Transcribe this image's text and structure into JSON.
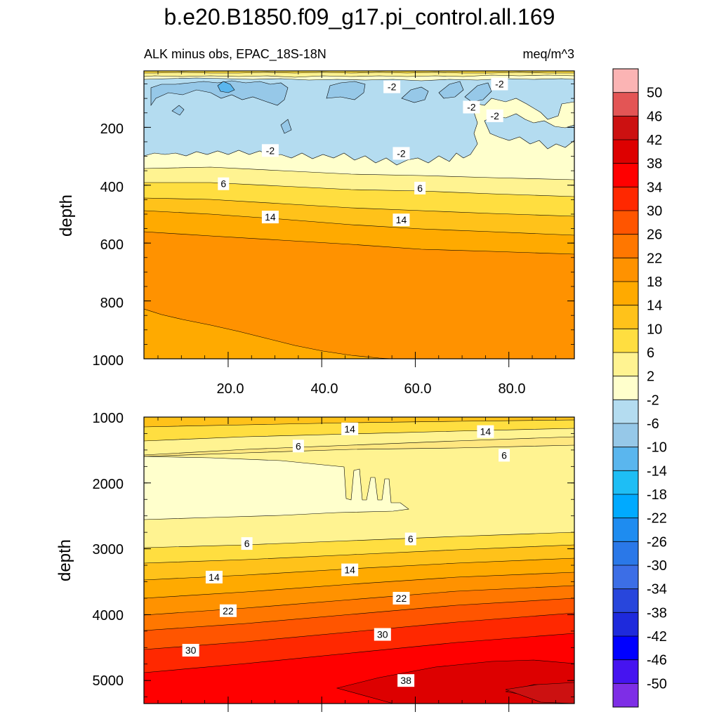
{
  "chart_data": [
    {
      "type": "contour",
      "panel": "upper",
      "title": "b.e20.B1850.f09_g17.pi_control.all.169",
      "left_title": "ALK minus obs, EPAC_18S-18N",
      "right_title": "meq/m^3",
      "ylabel": "depth",
      "xlabel": "",
      "xlim": [
        2,
        94
      ],
      "ylim": [
        1000,
        5
      ],
      "xticks": [
        20,
        40,
        60,
        80
      ],
      "xtick_labels": [
        "20.0",
        "40.0",
        "60.0",
        "80.0"
      ],
      "yticks": [
        200,
        400,
        600,
        800,
        1000
      ],
      "ytick_labels": [
        "200",
        "400",
        "600",
        "800",
        "1000"
      ],
      "contour_labels": [
        {
          "text": "-2",
          "x": 55,
          "y": 60
        },
        {
          "text": "-2",
          "x": 78,
          "y": 50
        },
        {
          "text": "-2",
          "x": 72,
          "y": 130
        },
        {
          "text": "-2",
          "x": 77,
          "y": 160
        },
        {
          "text": "-2",
          "x": 29,
          "y": 280
        },
        {
          "text": "-2",
          "x": 57,
          "y": 290
        },
        {
          "text": "6",
          "x": 19,
          "y": 395
        },
        {
          "text": "6",
          "x": 61,
          "y": 410
        },
        {
          "text": "14",
          "x": 29,
          "y": 510
        },
        {
          "text": "14",
          "x": 57,
          "y": 520
        }
      ]
    },
    {
      "type": "contour",
      "panel": "lower",
      "ylabel": "depth",
      "xlim": [
        2,
        94
      ],
      "ylim": [
        5350,
        1000
      ],
      "yticks": [
        1000,
        2000,
        3000,
        4000,
        5000
      ],
      "ytick_labels": [
        "1000",
        "2000",
        "3000",
        "4000",
        "5000"
      ],
      "contour_labels": [
        {
          "text": "14",
          "x": 46,
          "y": 1180
        },
        {
          "text": "14",
          "x": 75,
          "y": 1220
        },
        {
          "text": "6",
          "x": 35,
          "y": 1440
        },
        {
          "text": "6",
          "x": 79,
          "y": 1580
        },
        {
          "text": "6",
          "x": 24,
          "y": 2920
        },
        {
          "text": "6",
          "x": 59,
          "y": 2850
        },
        {
          "text": "14",
          "x": 17,
          "y": 3430
        },
        {
          "text": "14",
          "x": 46,
          "y": 3320
        },
        {
          "text": "22",
          "x": 20,
          "y": 3940
        },
        {
          "text": "22",
          "x": 57,
          "y": 3750
        },
        {
          "text": "30",
          "x": 12,
          "y": 4540
        },
        {
          "text": "30",
          "x": 53,
          "y": 4300
        },
        {
          "text": "38",
          "x": 58,
          "y": 5000
        }
      ]
    }
  ],
  "colorbar": {
    "labels": [
      "50",
      "46",
      "42",
      "38",
      "34",
      "30",
      "26",
      "22",
      "18",
      "14",
      "10",
      "6",
      "2",
      "-2",
      "-6",
      "-10",
      "-14",
      "-18",
      "-22",
      "-26",
      "-30",
      "-34",
      "-38",
      "-42",
      "-46",
      "-50"
    ],
    "colors": [
      "#fbb4b4",
      "#e35555",
      "#cc1111",
      "#dd0000",
      "#ff0000",
      "#ff2800",
      "#ff5500",
      "#ff7700",
      "#ff9200",
      "#ffaa00",
      "#ffc21a",
      "#ffde40",
      "#fff391",
      "#ffffcc",
      "#b4dcf0",
      "#96c8e8",
      "#5ab6ee",
      "#1ebef5",
      "#00aaff",
      "#1e8cf0",
      "#2a78e8",
      "#3c6ee6",
      "#2846dc",
      "#1e2adc",
      "#0000ff",
      "#4614f0",
      "#7e2ee6"
    ]
  }
}
